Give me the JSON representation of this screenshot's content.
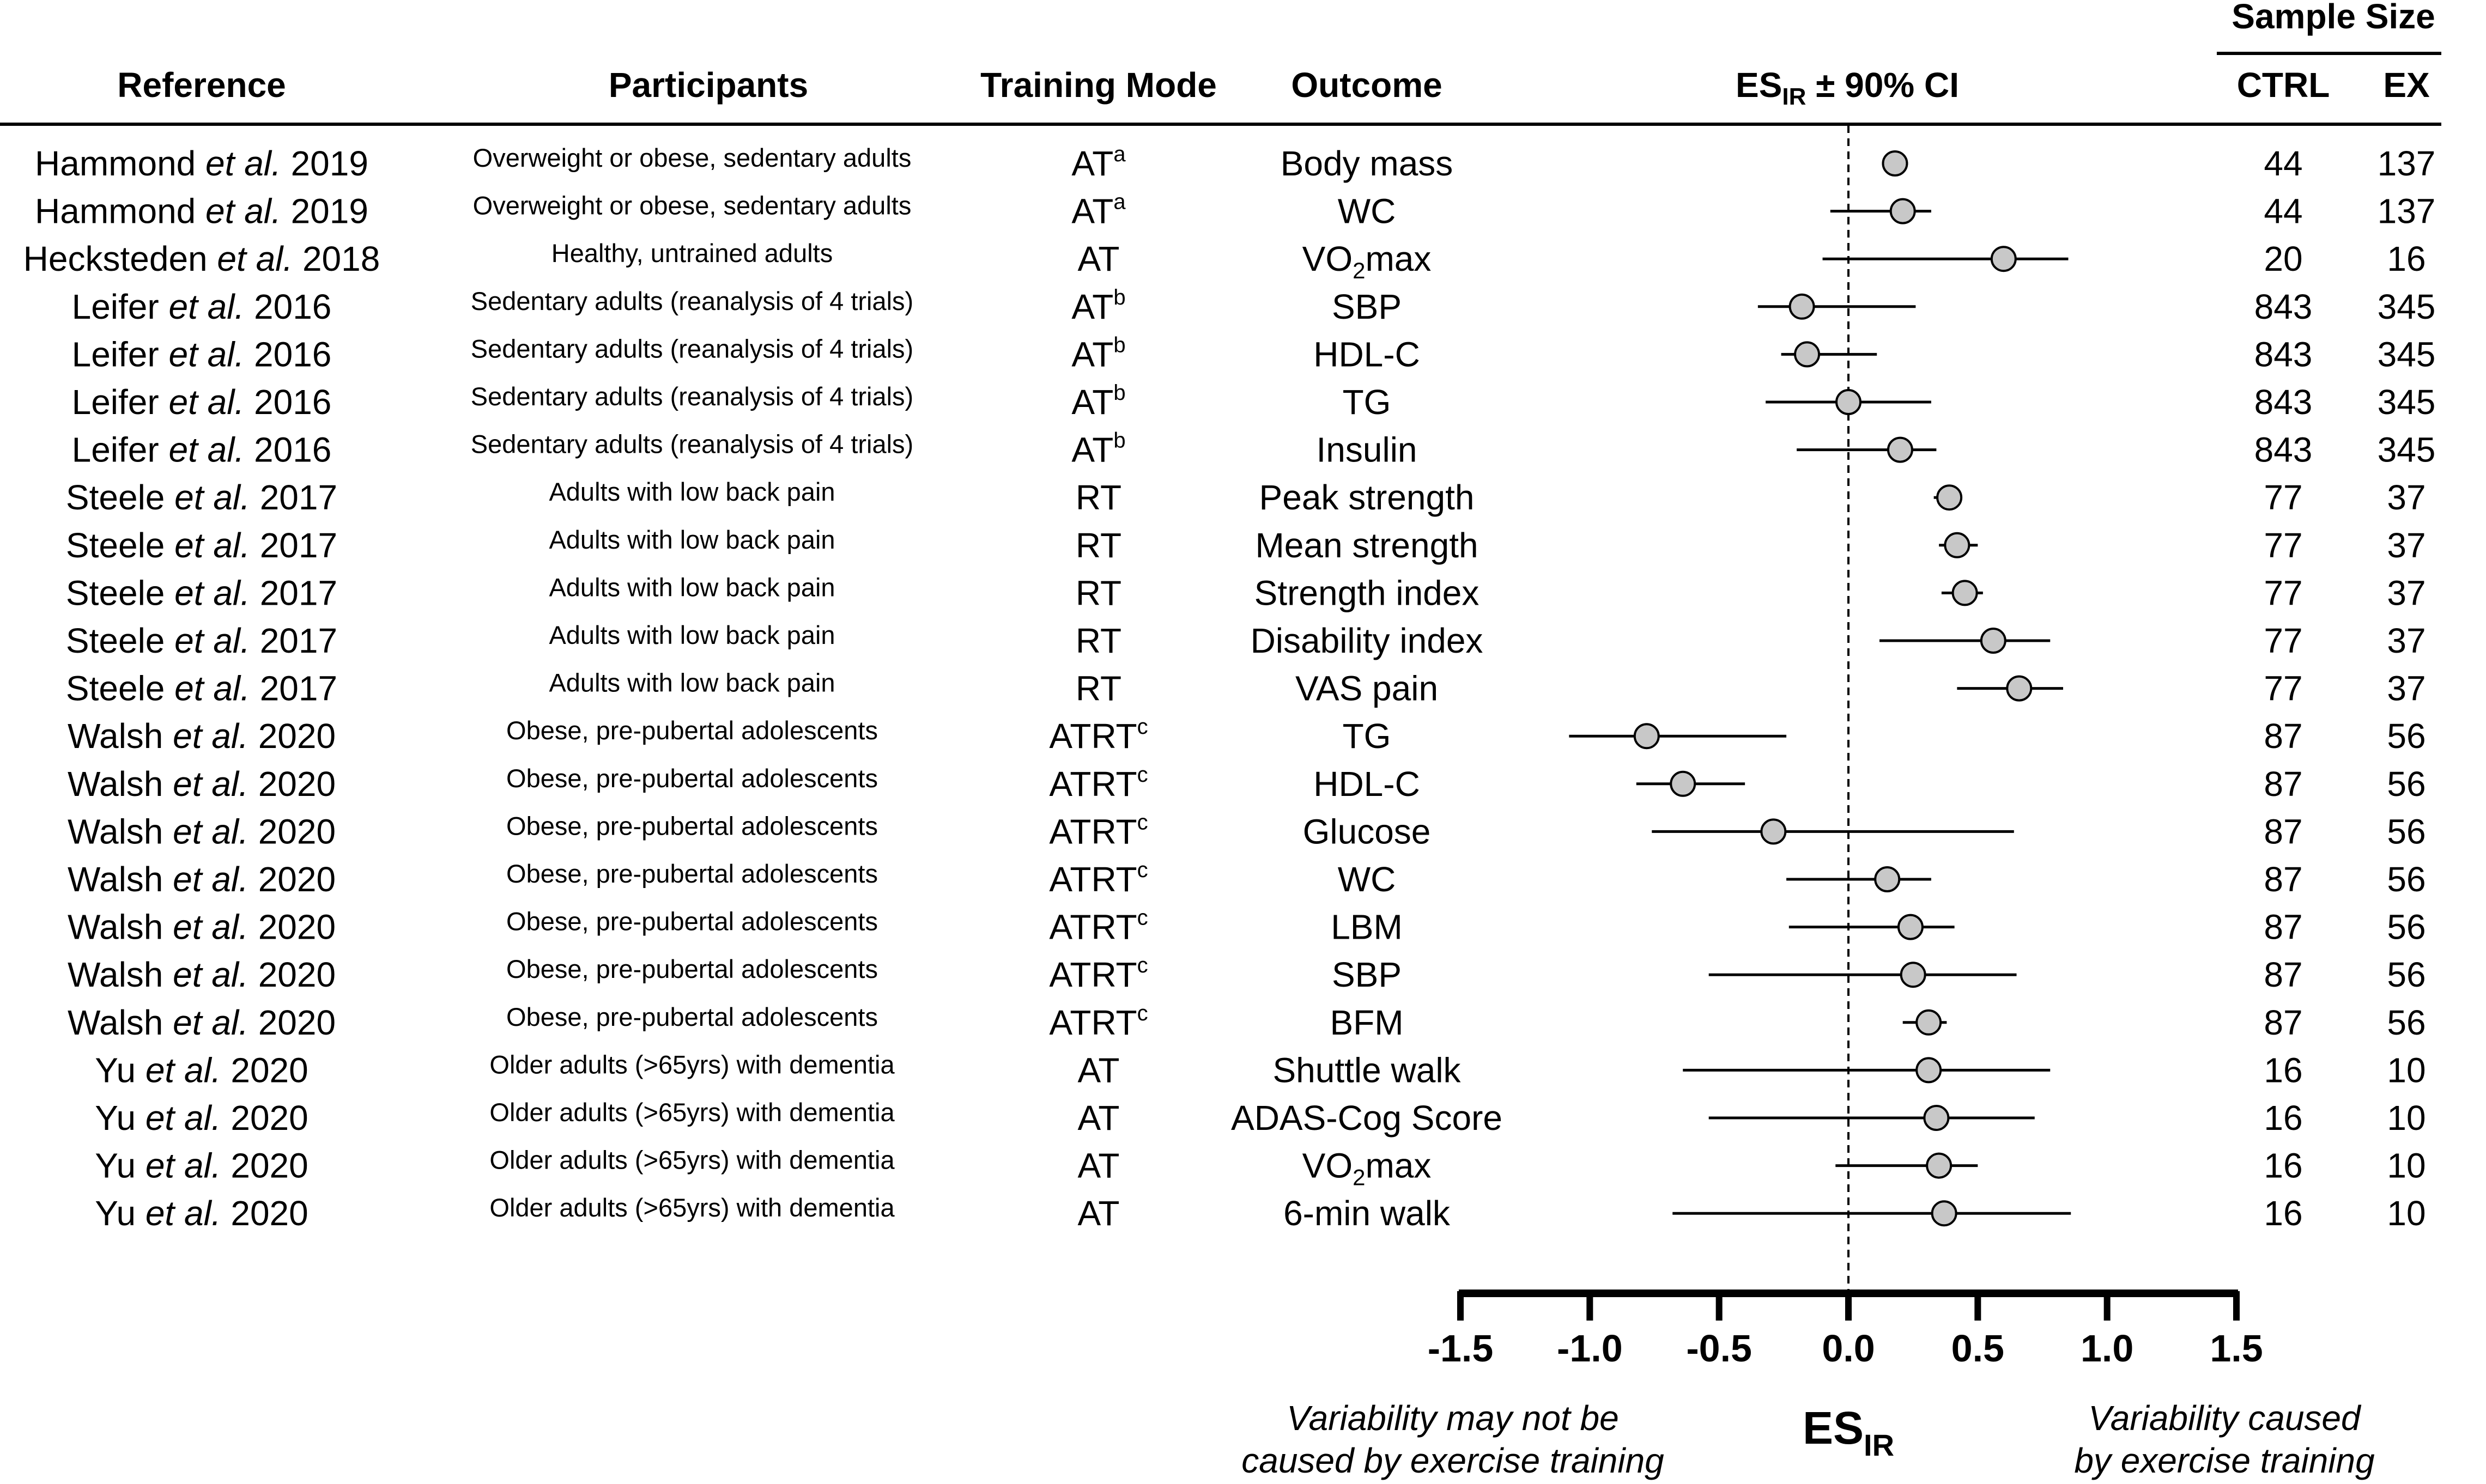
{
  "chart_data": {
    "type": "forest",
    "headers": {
      "reference": "Reference",
      "participants": "Participants",
      "training_mode": "Training Mode",
      "outcome": "Outcome",
      "es": "ES",
      "es_sub": "IR",
      "es_suffix": " ± 90% CI",
      "sample_size": "Sample Size",
      "ctrl": "CTRL",
      "ex": "EX"
    },
    "x_axis": {
      "label": "ES",
      "label_sub": "IR",
      "xlim": [
        -1.5,
        1.5
      ],
      "ticks": [
        "-1.5",
        "-1.0",
        "-0.5",
        "0.0",
        "0.5",
        "1.0",
        "1.5"
      ],
      "reference_line": 0.0,
      "left_note": [
        "Variability may not be",
        "caused by exercise training"
      ],
      "right_note": [
        "Variability caused",
        "by exercise training"
      ]
    },
    "rows": [
      {
        "author": "Hammond",
        "etal": "et al.",
        "year": "2019",
        "participants": "Overweight or obese, sedentary adults",
        "mode": "AT",
        "mode_sup": "a",
        "outcome": "Body mass",
        "outcome_sub": "",
        "outcome_suffix": "",
        "es": 0.18,
        "lo": 0.13,
        "hi": 0.23,
        "ctrl": "44",
        "ex": "137"
      },
      {
        "author": "Hammond",
        "etal": "et al.",
        "year": "2019",
        "participants": "Overweight or obese, sedentary adults",
        "mode": "AT",
        "mode_sup": "a",
        "outcome": "WC",
        "outcome_sub": "",
        "outcome_suffix": "",
        "es": 0.21,
        "lo": -0.07,
        "hi": 0.32,
        "ctrl": "44",
        "ex": "137"
      },
      {
        "author": "Hecksteden",
        "etal": "et al.",
        "year": "2018",
        "participants": "Healthy, untrained adults",
        "mode": "AT",
        "mode_sup": "",
        "outcome": "VO",
        "outcome_sub": "2",
        "outcome_suffix": "max",
        "es": 0.6,
        "lo": -0.1,
        "hi": 0.85,
        "ctrl": "20",
        "ex": "16"
      },
      {
        "author": "Leifer",
        "etal": "et al.",
        "year": "2016",
        "participants": "Sedentary adults (reanalysis of 4 trials)",
        "mode": "AT",
        "mode_sup": "b",
        "outcome": "SBP",
        "outcome_sub": "",
        "outcome_suffix": "",
        "es": -0.18,
        "lo": -0.35,
        "hi": 0.26,
        "ctrl": "843",
        "ex": "345"
      },
      {
        "author": "Leifer",
        "etal": "et al.",
        "year": "2016",
        "participants": "Sedentary adults (reanalysis of 4 trials)",
        "mode": "AT",
        "mode_sup": "b",
        "outcome": "HDL-C",
        "outcome_sub": "",
        "outcome_suffix": "",
        "es": -0.16,
        "lo": -0.26,
        "hi": 0.11,
        "ctrl": "843",
        "ex": "345"
      },
      {
        "author": "Leifer",
        "etal": "et al.",
        "year": "2016",
        "participants": "Sedentary adults (reanalysis of 4 trials)",
        "mode": "AT",
        "mode_sup": "b",
        "outcome": "TG",
        "outcome_sub": "",
        "outcome_suffix": "",
        "es": 0.0,
        "lo": -0.32,
        "hi": 0.32,
        "ctrl": "843",
        "ex": "345"
      },
      {
        "author": "Leifer",
        "etal": "et al.",
        "year": "2016",
        "participants": "Sedentary adults (reanalysis of 4 trials)",
        "mode": "AT",
        "mode_sup": "b",
        "outcome": "Insulin",
        "outcome_sub": "",
        "outcome_suffix": "",
        "es": 0.2,
        "lo": -0.2,
        "hi": 0.34,
        "ctrl": "843",
        "ex": "345"
      },
      {
        "author": "Steele",
        "etal": "et al.",
        "year": "2017",
        "participants": "Adults with low back pain",
        "mode": "RT",
        "mode_sup": "",
        "outcome": "Peak strength",
        "outcome_sub": "",
        "outcome_suffix": "",
        "es": 0.39,
        "lo": 0.33,
        "hi": 0.44,
        "ctrl": "77",
        "ex": "37"
      },
      {
        "author": "Steele",
        "etal": "et al.",
        "year": "2017",
        "participants": "Adults with low back pain",
        "mode": "RT",
        "mode_sup": "",
        "outcome": "Mean strength",
        "outcome_sub": "",
        "outcome_suffix": "",
        "es": 0.42,
        "lo": 0.35,
        "hi": 0.5,
        "ctrl": "77",
        "ex": "37"
      },
      {
        "author": "Steele",
        "etal": "et al.",
        "year": "2017",
        "participants": "Adults with low back pain",
        "mode": "RT",
        "mode_sup": "",
        "outcome": "Strength index",
        "outcome_sub": "",
        "outcome_suffix": "",
        "es": 0.45,
        "lo": 0.36,
        "hi": 0.52,
        "ctrl": "77",
        "ex": "37"
      },
      {
        "author": "Steele",
        "etal": "et al.",
        "year": "2017",
        "participants": "Adults with low back pain",
        "mode": "RT",
        "mode_sup": "",
        "outcome": "Disability index",
        "outcome_sub": "",
        "outcome_suffix": "",
        "es": 0.56,
        "lo": 0.12,
        "hi": 0.78,
        "ctrl": "77",
        "ex": "37"
      },
      {
        "author": "Steele",
        "etal": "et al.",
        "year": "2017",
        "participants": "Adults with low back pain",
        "mode": "RT",
        "mode_sup": "",
        "outcome": "VAS pain",
        "outcome_sub": "",
        "outcome_suffix": "",
        "es": 0.66,
        "lo": 0.42,
        "hi": 0.83,
        "ctrl": "77",
        "ex": "37"
      },
      {
        "author": "Walsh",
        "etal": "et al.",
        "year": "2020",
        "participants": "Obese, pre-pubertal adolescents",
        "mode": "ATRT",
        "mode_sup": "c",
        "outcome": "TG",
        "outcome_sub": "",
        "outcome_suffix": "",
        "es": -0.78,
        "lo": -1.08,
        "hi": -0.24,
        "ctrl": "87",
        "ex": "56"
      },
      {
        "author": "Walsh",
        "etal": "et al.",
        "year": "2020",
        "participants": "Obese, pre-pubertal adolescents",
        "mode": "ATRT",
        "mode_sup": "c",
        "outcome": "HDL-C",
        "outcome_sub": "",
        "outcome_suffix": "",
        "es": -0.64,
        "lo": -0.82,
        "hi": -0.4,
        "ctrl": "87",
        "ex": "56"
      },
      {
        "author": "Walsh",
        "etal": "et al.",
        "year": "2020",
        "participants": "Obese, pre-pubertal adolescents",
        "mode": "ATRT",
        "mode_sup": "c",
        "outcome": "Glucose",
        "outcome_sub": "",
        "outcome_suffix": "",
        "es": -0.29,
        "lo": -0.76,
        "hi": 0.64,
        "ctrl": "87",
        "ex": "56"
      },
      {
        "author": "Walsh",
        "etal": "et al.",
        "year": "2020",
        "participants": "Obese, pre-pubertal adolescents",
        "mode": "ATRT",
        "mode_sup": "c",
        "outcome": "WC",
        "outcome_sub": "",
        "outcome_suffix": "",
        "es": 0.15,
        "lo": -0.24,
        "hi": 0.32,
        "ctrl": "87",
        "ex": "56"
      },
      {
        "author": "Walsh",
        "etal": "et al.",
        "year": "2020",
        "participants": "Obese, pre-pubertal adolescents",
        "mode": "ATRT",
        "mode_sup": "c",
        "outcome": "LBM",
        "outcome_sub": "",
        "outcome_suffix": "",
        "es": 0.24,
        "lo": -0.23,
        "hi": 0.41,
        "ctrl": "87",
        "ex": "56"
      },
      {
        "author": "Walsh",
        "etal": "et al.",
        "year": "2020",
        "participants": "Obese, pre-pubertal adolescents",
        "mode": "ATRT",
        "mode_sup": "c",
        "outcome": "SBP",
        "outcome_sub": "",
        "outcome_suffix": "",
        "es": 0.25,
        "lo": -0.54,
        "hi": 0.65,
        "ctrl": "87",
        "ex": "56"
      },
      {
        "author": "Walsh",
        "etal": "et al.",
        "year": "2020",
        "participants": "Obese, pre-pubertal adolescents",
        "mode": "ATRT",
        "mode_sup": "c",
        "outcome": "BFM",
        "outcome_sub": "",
        "outcome_suffix": "",
        "es": 0.31,
        "lo": 0.21,
        "hi": 0.38,
        "ctrl": "87",
        "ex": "56"
      },
      {
        "author": "Yu",
        "etal": "et al.",
        "year": "2020",
        "participants": "Older adults (>65yrs) with dementia",
        "mode": "AT",
        "mode_sup": "",
        "outcome": "Shuttle walk",
        "outcome_sub": "",
        "outcome_suffix": "",
        "es": 0.31,
        "lo": -0.64,
        "hi": 0.78,
        "ctrl": "16",
        "ex": "10"
      },
      {
        "author": "Yu",
        "etal": "et al.",
        "year": "2020",
        "participants": "Older adults (>65yrs) with dementia",
        "mode": "AT",
        "mode_sup": "",
        "outcome": "ADAS-Cog Score",
        "outcome_sub": "",
        "outcome_suffix": "",
        "es": 0.34,
        "lo": -0.54,
        "hi": 0.72,
        "ctrl": "16",
        "ex": "10"
      },
      {
        "author": "Yu",
        "etal": "et al.",
        "year": "2020",
        "participants": "Older adults (>65yrs) with dementia",
        "mode": "AT",
        "mode_sup": "",
        "outcome": "VO",
        "outcome_sub": "2",
        "outcome_suffix": "max",
        "es": 0.35,
        "lo": -0.05,
        "hi": 0.5,
        "ctrl": "16",
        "ex": "10"
      },
      {
        "author": "Yu",
        "etal": "et al.",
        "year": "2020",
        "participants": "Older adults (>65yrs) with dementia",
        "mode": "AT",
        "mode_sup": "",
        "outcome": "6-min walk",
        "outcome_sub": "",
        "outcome_suffix": "",
        "es": 0.37,
        "lo": -0.68,
        "hi": 0.86,
        "ctrl": "16",
        "ex": "10"
      }
    ]
  }
}
